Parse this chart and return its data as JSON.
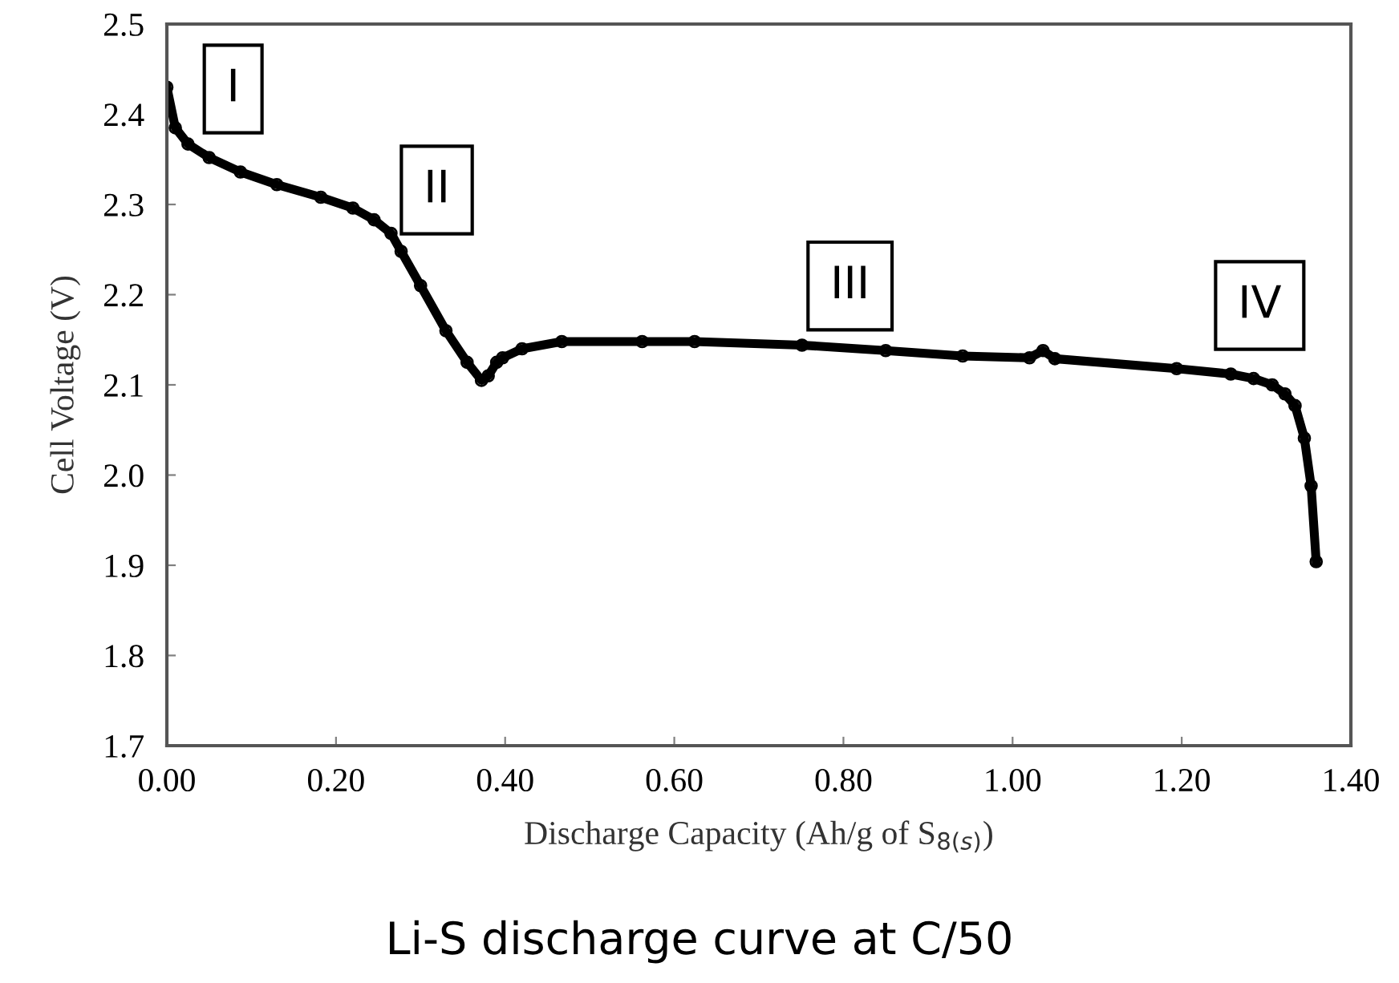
{
  "chart_data": {
    "type": "line",
    "title": "Li-S discharge curve at C/50",
    "xlabel": "Discharge Capacity (Ah/g of S$_{8(s)}$)",
    "ylabel": "Cell Voltage (V)",
    "series": [
      {
        "color": "#000000",
        "marker": "circle",
        "x": [
          0,
          0.01,
          0.025,
          0.05,
          0.087,
          0.13,
          0.182,
          0.22,
          0.245,
          0.265,
          0.277,
          0.3,
          0.33,
          0.355,
          0.372,
          0.38,
          0.39,
          0.397,
          0.42,
          0.467,
          0.562,
          0.624,
          0.751,
          0.85,
          0.941,
          1.02,
          1.036,
          1.05,
          1.194,
          1.258,
          1.285,
          1.307,
          1.322,
          1.334,
          1.345,
          1.353,
          1.359
        ],
        "values": [
          2.43,
          2.385,
          2.367,
          2.352,
          2.336,
          2.322,
          2.308,
          2.296,
          2.283,
          2.268,
          2.248,
          2.21,
          2.16,
          2.125,
          2.105,
          2.11,
          2.125,
          2.13,
          2.14,
          2.148,
          2.148,
          2.148,
          2.144,
          2.138,
          2.132,
          2.13,
          2.138,
          2.129,
          2.118,
          2.112,
          2.107,
          2.1,
          2.09,
          2.077,
          2.041,
          1.988,
          1.904
        ]
      }
    ],
    "xlim": [
      0,
      1.4
    ],
    "ylim": [
      1.7,
      2.5
    ],
    "xticks": [
      {
        "value": 0,
        "label": "0.00"
      },
      {
        "value": 0.2,
        "label": "0.20"
      },
      {
        "value": 0.4,
        "label": "0.40"
      },
      {
        "value": 0.6,
        "label": "0.60"
      },
      {
        "value": 0.8,
        "label": "0.80"
      },
      {
        "value": 1.0,
        "label": "1.00"
      },
      {
        "value": 1.2,
        "label": "1.20"
      },
      {
        "value": 1.4,
        "label": "1.40"
      }
    ],
    "yticks": [
      1.7,
      1.8,
      1.9,
      {
        "value": 2.0,
        "label": "2.0"
      },
      2.1,
      2.2,
      2.3,
      2.4,
      2.5
    ],
    "grid": false,
    "legend": false,
    "annotations": [
      "I",
      "II",
      "III",
      "IV"
    ]
  }
}
